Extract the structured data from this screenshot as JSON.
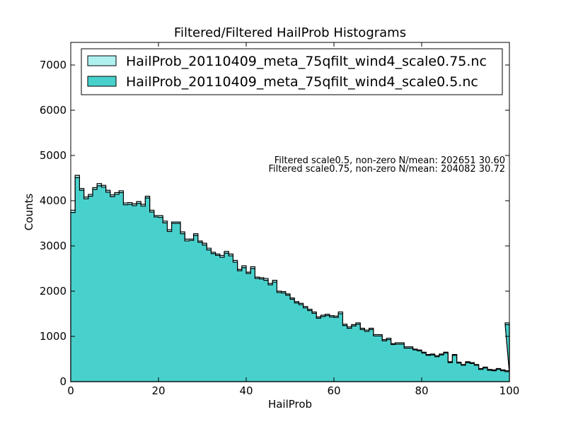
{
  "chart_data": {
    "type": "histogram",
    "title": "Filtered/Filtered HailProb Histograms",
    "xlabel": "HailProb",
    "ylabel": "Counts",
    "xlim": [
      0,
      100
    ],
    "ylim": [
      0,
      7500
    ],
    "xticks": [
      0,
      20,
      40,
      60,
      80,
      100
    ],
    "yticks": [
      0,
      1000,
      2000,
      3000,
      4000,
      5000,
      6000,
      7000
    ],
    "grid": false,
    "legend_position": "top-left",
    "annotations": [
      "Filtered scale0.5, non-zero N/mean: 202651 30.60",
      "Filtered scale0.75, non-zero N/mean: 204082 30.72"
    ],
    "series": [
      {
        "name": "HailProb_20110409_meta_75qfilt_wind4_scale0.75.nc",
        "color": "#aff0f0",
        "bin_width": 1,
        "values": [
          3790,
          4560,
          4270,
          4080,
          4140,
          4290,
          4380,
          4340,
          4230,
          4130,
          4180,
          4220,
          3950,
          3960,
          3930,
          3980,
          3920,
          4100,
          3790,
          3670,
          3670,
          3550,
          3360,
          3530,
          3530,
          3310,
          3150,
          3150,
          3270,
          3110,
          3060,
          2950,
          2860,
          2820,
          2790,
          2880,
          2820,
          2680,
          2480,
          2560,
          2420,
          2540,
          2310,
          2300,
          2280,
          2170,
          2240,
          2000,
          1990,
          1940,
          1850,
          1770,
          1730,
          1660,
          1600,
          1540,
          1430,
          1470,
          1490,
          1460,
          1450,
          1540,
          1270,
          1210,
          1260,
          1300,
          1180,
          1140,
          1180,
          1040,
          1040,
          930,
          960,
          840,
          860,
          860,
          770,
          770,
          720,
          700,
          650,
          600,
          610,
          570,
          610,
          650,
          440,
          600,
          430,
          380,
          440,
          420,
          380,
          290,
          320,
          270,
          260,
          290,
          260,
          240,
          210,
          1300
        ],
        "note": "101 bins, last bin at 100"
      },
      {
        "name": "HailProb_20110409_meta_75qfilt_wind4_scale0.5.nc",
        "color": "#48d1cc",
        "bin_width": 1,
        "values": [
          3740,
          4510,
          4230,
          4040,
          4100,
          4250,
          4330,
          4300,
          4190,
          4090,
          4140,
          4180,
          3910,
          3920,
          3890,
          3940,
          3880,
          4060,
          3750,
          3640,
          3630,
          3510,
          3320,
          3500,
          3500,
          3270,
          3110,
          3120,
          3230,
          3080,
          3020,
          2910,
          2830,
          2790,
          2750,
          2840,
          2780,
          2640,
          2450,
          2520,
          2390,
          2500,
          2280,
          2270,
          2240,
          2140,
          2200,
          1970,
          1960,
          1910,
          1820,
          1740,
          1700,
          1630,
          1570,
          1510,
          1400,
          1440,
          1460,
          1430,
          1420,
          1500,
          1240,
          1180,
          1230,
          1270,
          1150,
          1110,
          1150,
          1010,
          1010,
          900,
          930,
          820,
          830,
          830,
          740,
          740,
          700,
          680,
          630,
          580,
          590,
          550,
          590,
          630,
          420,
          580,
          410,
          360,
          420,
          400,
          360,
          270,
          300,
          250,
          240,
          270,
          240,
          220,
          190,
          1260
        ]
      }
    ]
  }
}
